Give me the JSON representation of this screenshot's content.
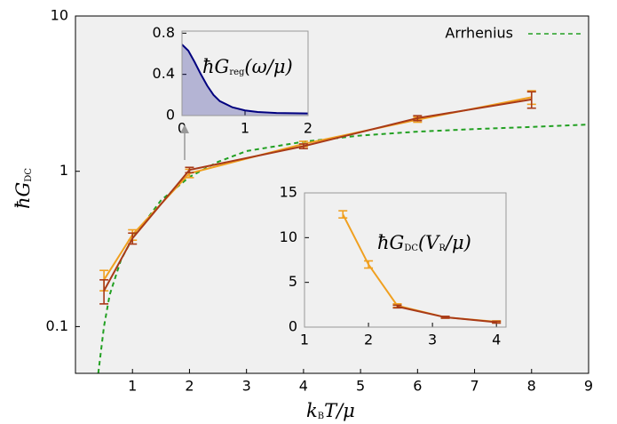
{
  "chart_data": [
    {
      "type": "line",
      "log_y": true,
      "xlabel": [
        "k",
        "B",
        "T/μ"
      ],
      "ylabel": [
        "ħG",
        "DC"
      ],
      "xlim": [
        0,
        9
      ],
      "ylim": [
        0.05,
        10
      ],
      "xticks": [
        1,
        2,
        3,
        4,
        5,
        6,
        7,
        8,
        9
      ],
      "yticks": [
        0.1,
        1,
        10
      ],
      "legend": "top-right",
      "series": [
        {
          "name": "Arrhenius",
          "color": "#22a022",
          "dashed": true,
          "x": [
            0.4,
            0.5,
            0.6,
            0.8,
            1,
            1.5,
            2,
            2.5,
            3,
            4,
            5,
            6,
            7,
            8,
            9
          ],
          "values": [
            0.05,
            0.1,
            0.16,
            0.27,
            0.37,
            0.65,
            0.92,
            1.15,
            1.35,
            1.55,
            1.7,
            1.8,
            1.87,
            1.93,
            2.0
          ]
        },
        {
          "color": "#f0a020",
          "x": [
            0.5,
            1,
            2,
            4,
            6,
            8
          ],
          "values": [
            0.2,
            0.39,
            0.97,
            1.5,
            2.15,
            3.0
          ],
          "errors": [
            0.03,
            0.03,
            0.06,
            0.06,
            0.08,
            0.3
          ]
        },
        {
          "color": "#a83a18",
          "x": [
            0.5,
            1,
            2,
            4,
            6,
            8
          ],
          "values": [
            0.17,
            0.37,
            1.02,
            1.45,
            2.2,
            2.9
          ],
          "errors": [
            0.03,
            0.03,
            0.04,
            0.05,
            0.08,
            0.35
          ]
        }
      ]
    },
    {
      "type": "area",
      "label": [
        "ħG",
        "reg",
        "(ω/μ)"
      ],
      "xlim": [
        0,
        2
      ],
      "ylim": [
        0,
        0.82
      ],
      "xticks": [
        0,
        1,
        2
      ],
      "yticks": [
        0,
        0.4,
        0.8
      ],
      "series": [
        {
          "color": "#00007f",
          "x": [
            0,
            0.1,
            0.2,
            0.3,
            0.4,
            0.5,
            0.6,
            0.8,
            1,
            1.2,
            1.5,
            2
          ],
          "values": [
            0.69,
            0.63,
            0.52,
            0.4,
            0.29,
            0.2,
            0.14,
            0.08,
            0.05,
            0.035,
            0.025,
            0.02
          ]
        }
      ]
    },
    {
      "type": "line",
      "label": [
        "ħG",
        "DC",
        "(V",
        "R",
        "/μ)"
      ],
      "xlim": [
        1,
        4.15
      ],
      "ylim": [
        0,
        15
      ],
      "xticks": [
        1,
        2,
        3,
        4
      ],
      "yticks": [
        0,
        5,
        10,
        15
      ],
      "series": [
        {
          "color": "#f0a020",
          "x": [
            1.6,
            2,
            2.45,
            3.2,
            4
          ],
          "values": [
            12.6,
            7,
            2.4,
            1.1,
            0.6
          ],
          "errors": [
            0.4,
            0.4,
            0.2,
            0.1,
            0.1
          ]
        },
        {
          "color": "#a83a18",
          "x": [
            2.45,
            3.2,
            4
          ],
          "values": [
            2.3,
            1.1,
            0.55
          ],
          "errors": [
            0.15,
            0.1,
            0.1
          ]
        }
      ]
    }
  ]
}
